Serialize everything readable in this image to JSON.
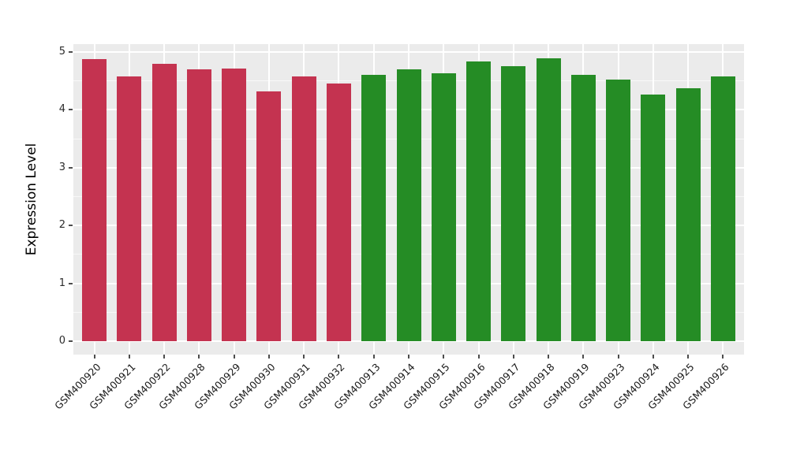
{
  "chart_data": {
    "type": "bar",
    "title": "",
    "xlabel": "",
    "ylabel": "Expression Level",
    "categories": [
      "GSM400920",
      "GSM400921",
      "GSM400922",
      "GSM400928",
      "GSM400929",
      "GSM400930",
      "GSM400931",
      "GSM400932",
      "GSM400913",
      "GSM400914",
      "GSM400915",
      "GSM400916",
      "GSM400917",
      "GSM400918",
      "GSM400919",
      "GSM400923",
      "GSM400924",
      "GSM400925",
      "GSM400926"
    ],
    "values": [
      4.88,
      4.58,
      4.79,
      4.7,
      4.72,
      4.32,
      4.58,
      4.45,
      4.6,
      4.7,
      4.63,
      4.84,
      4.75,
      4.89,
      4.61,
      4.52,
      4.27,
      4.38,
      4.58
    ],
    "bar_colors": [
      "#C43350",
      "#C43350",
      "#C43350",
      "#C43350",
      "#C43350",
      "#C43350",
      "#C43350",
      "#C43350",
      "#258C25",
      "#258C25",
      "#258C25",
      "#258C25",
      "#258C25",
      "#258C25",
      "#258C25",
      "#258C25",
      "#258C25",
      "#258C25",
      "#258C25"
    ],
    "group_colors": {
      "red_group": "#C43350",
      "green_group": "#258C25"
    },
    "ytick_labels": [
      "0",
      "1",
      "2",
      "3",
      "4",
      "5"
    ],
    "yticks": [
      0,
      1,
      2,
      3,
      4,
      5
    ],
    "minor_yticks": [
      0.5,
      1.5,
      2.5,
      3.5,
      4.5
    ],
    "ylim": [
      -0.23,
      5.14
    ],
    "grid": "on",
    "legend_position": "none",
    "panel_bg": "#EBEBEB",
    "grid_color": "#FFFFFF",
    "outer_bg": "#FFFFFF"
  }
}
